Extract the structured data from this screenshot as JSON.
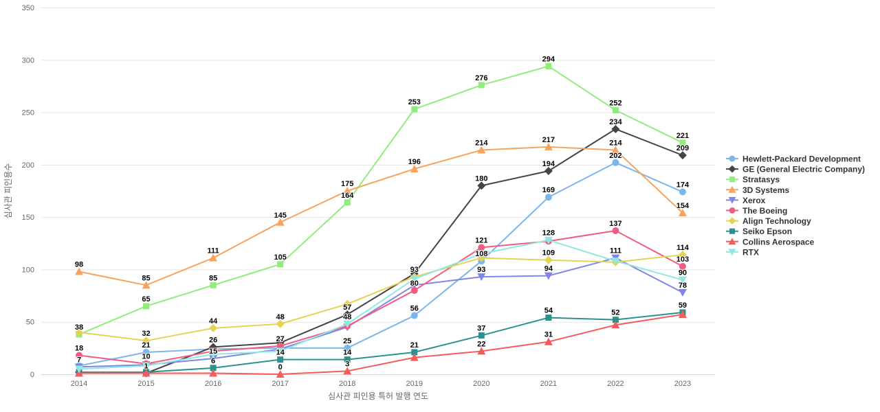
{
  "page": {
    "background": "#ffffff"
  },
  "chart_data": {
    "type": "line",
    "title": "",
    "xlabel": "심사관 피인용 특허 발행 연도",
    "ylabel": "심사관 피인용수",
    "x": [
      2014,
      2015,
      2016,
      2017,
      2018,
      2019,
      2020,
      2021,
      2022,
      2023
    ],
    "yticks": [
      0,
      50,
      100,
      150,
      200,
      250,
      300,
      350
    ],
    "ylim": [
      0,
      350
    ],
    "grid": true,
    "legend_position": "right",
    "style_colors": {
      "grid_line": "#e6e6e6",
      "axis_line": "#ccd6eb",
      "tick_text": "#666666",
      "axis_title_text": "#666666",
      "legend_text": "#333333",
      "data_label_text": "#000000"
    },
    "series": [
      {
        "name": "Hewlett-Packard Development",
        "color": "#7cb5ec",
        "marker": "circle",
        "values": [
          8,
          21,
          24,
          25,
          25,
          56,
          108,
          169,
          202,
          174
        ],
        "labeled": [
          false,
          true,
          false,
          false,
          true,
          true,
          true,
          true,
          true,
          true
        ]
      },
      {
        "name": "GE (General Electric Company)",
        "color": "#434348",
        "marker": "diamond",
        "values": [
          2,
          1,
          26,
          30,
          57,
          96,
          180,
          194,
          234,
          209
        ],
        "labeled": [
          false,
          true,
          true,
          false,
          true,
          false,
          true,
          true,
          true,
          true
        ]
      },
      {
        "name": "Stratasys",
        "color": "#90ed7d",
        "marker": "square",
        "values": [
          38,
          65,
          85,
          105,
          164,
          253,
          276,
          294,
          252,
          221
        ],
        "labeled": [
          true,
          true,
          true,
          true,
          true,
          true,
          true,
          true,
          true,
          true
        ]
      },
      {
        "name": "3D Systems",
        "color": "#f7a35c",
        "marker": "triangle-up",
        "values": [
          98,
          85,
          111,
          145,
          175,
          196,
          214,
          217,
          214,
          154
        ],
        "labeled": [
          true,
          true,
          true,
          true,
          true,
          true,
          true,
          true,
          true,
          true
        ]
      },
      {
        "name": "Xerox",
        "color": "#8085e9",
        "marker": "triangle-down",
        "values": [
          7,
          9,
          15,
          24,
          45,
          85,
          93,
          94,
          111,
          78
        ],
        "labeled": [
          true,
          false,
          true,
          false,
          false,
          false,
          true,
          true,
          true,
          true
        ]
      },
      {
        "name": "The Boeing",
        "color": "#f15c80",
        "marker": "circle",
        "values": [
          18,
          10,
          22,
          27,
          46,
          80,
          121,
          127,
          137,
          103
        ],
        "labeled": [
          true,
          true,
          false,
          true,
          false,
          true,
          true,
          false,
          true,
          true
        ]
      },
      {
        "name": "Align Technology",
        "color": "#e4d354",
        "marker": "diamond",
        "values": [
          40,
          32,
          44,
          48,
          67,
          93,
          111,
          109,
          107,
          114
        ],
        "labeled": [
          false,
          true,
          true,
          true,
          false,
          true,
          false,
          true,
          false,
          true
        ]
      },
      {
        "name": "Seiko Epson",
        "color": "#2b908f",
        "marker": "square",
        "values": [
          2,
          2,
          6,
          14,
          14,
          21,
          37,
          54,
          52,
          59
        ],
        "labeled": [
          false,
          false,
          true,
          true,
          true,
          true,
          true,
          true,
          true,
          true
        ]
      },
      {
        "name": "Collins Aerospace",
        "color": "#f45b5b",
        "marker": "triangle-up",
        "values": [
          1,
          1,
          1,
          0,
          3,
          16,
          22,
          31,
          47,
          57
        ],
        "labeled": [
          false,
          false,
          false,
          true,
          true,
          false,
          true,
          true,
          false,
          false
        ]
      },
      {
        "name": "RTX",
        "color": "#91e8e1",
        "marker": "triangle-down",
        "values": [
          5,
          8,
          19,
          22,
          48,
          91,
          115,
          128,
          108,
          90
        ],
        "labeled": [
          false,
          false,
          false,
          false,
          true,
          false,
          false,
          true,
          false,
          true
        ]
      }
    ]
  }
}
